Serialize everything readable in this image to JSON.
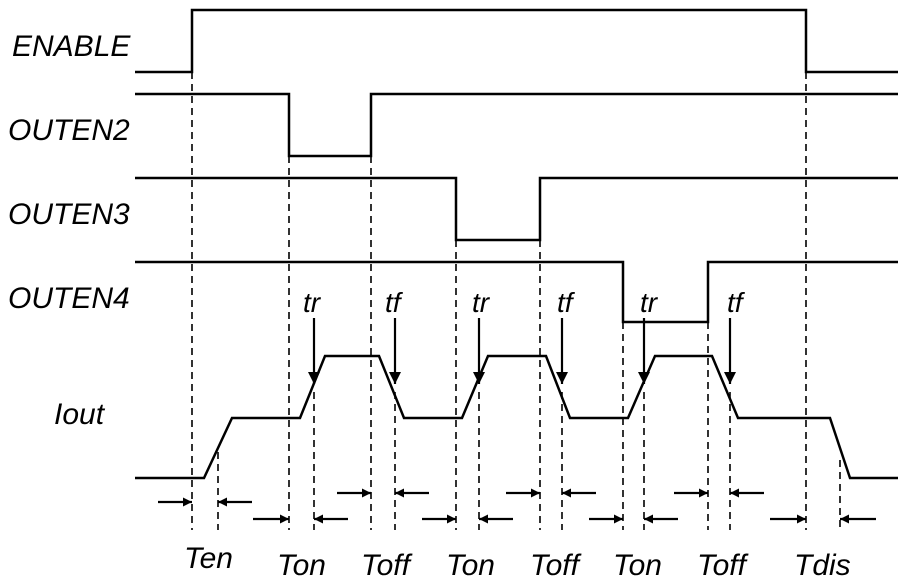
{
  "signals": [
    {
      "name": "ENABLE"
    },
    {
      "name": "OUTEN2"
    },
    {
      "name": "OUTEN3"
    },
    {
      "name": "OUTEN4"
    },
    {
      "name": "Iout"
    }
  ],
  "transition_labels": [
    "tr",
    "tf",
    "tr",
    "tf",
    "tr",
    "tf"
  ],
  "timing_labels": [
    "Ten",
    "Ton",
    "Toff",
    "Ton",
    "Toff",
    "Ton",
    "Toff",
    "Tdis"
  ]
}
